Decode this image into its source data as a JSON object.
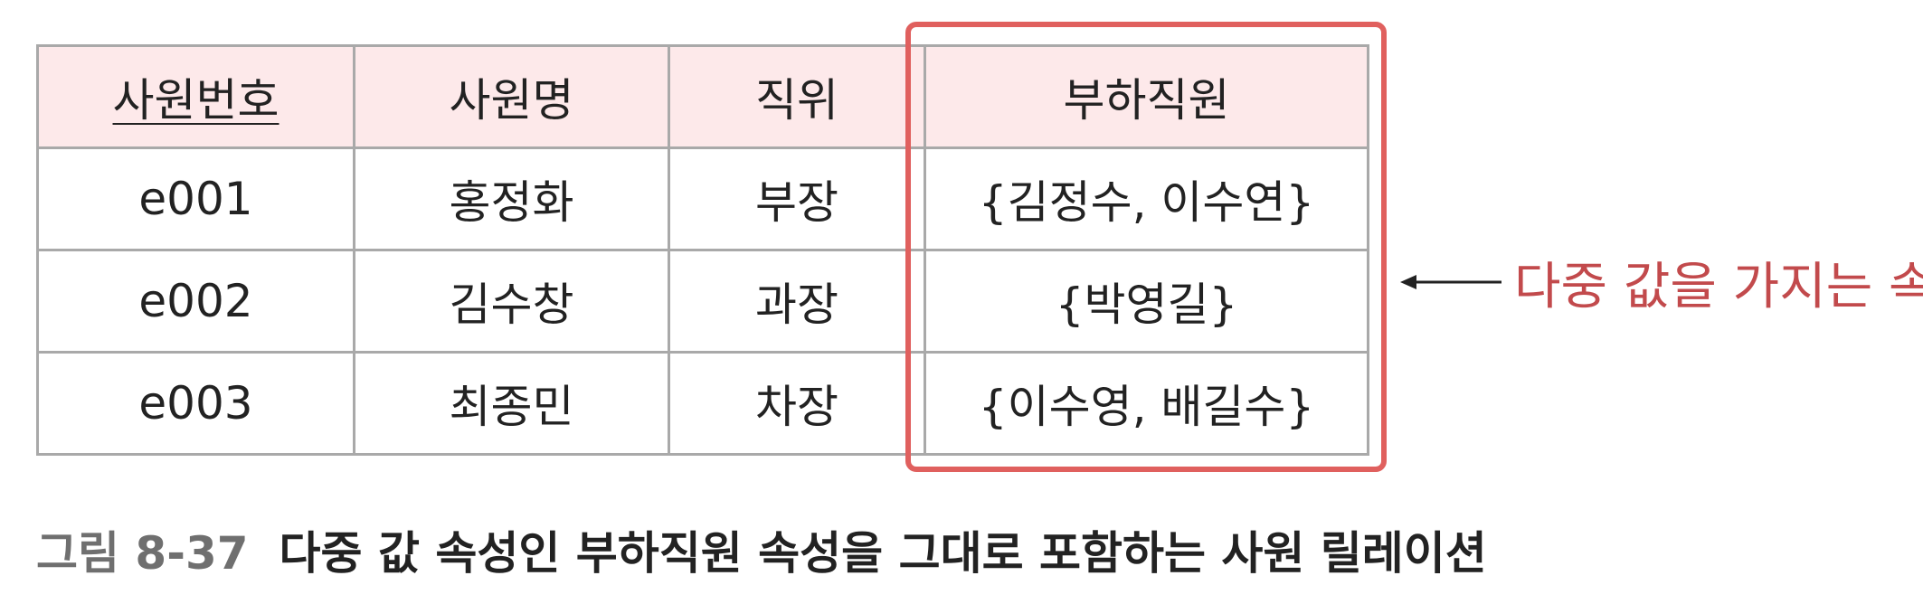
{
  "table": {
    "headers": [
      "사원번호",
      "사원명",
      "직위",
      "부하직원"
    ],
    "rows": [
      [
        "e001",
        "홍정화",
        "부장",
        "{김정수, 이수연}"
      ],
      [
        "e002",
        "김수창",
        "과장",
        "{박영길}"
      ],
      [
        "e003",
        "최종민",
        "차장",
        "{이수영, 배길수}"
      ]
    ]
  },
  "annotation": {
    "text": "다중 값을 가지는 속성",
    "color": "#c24a4c",
    "highlight_color": "#e0605e"
  },
  "caption": {
    "label": "그림 8-37",
    "text": "다중 값 속성인 부하직원 속성을 그대로 포함하는 사원 릴레이션"
  },
  "colors": {
    "header_bg": "#fde9ea",
    "grid": "#a9a9a9"
  }
}
